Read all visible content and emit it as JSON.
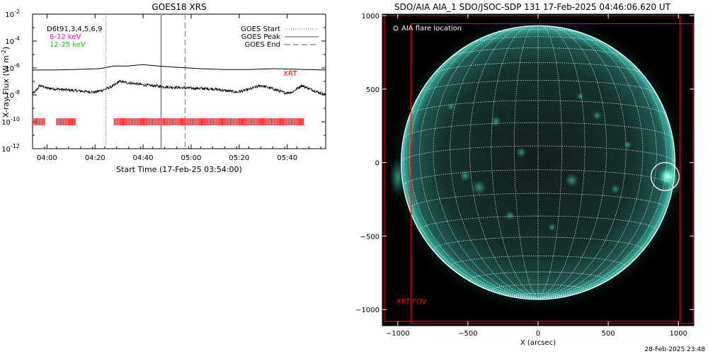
{
  "goes_panel": {
    "chart_data": {
      "type": "line",
      "title": "GOES18 XRS",
      "xlabel": "Start Time (17-Feb-25 03:54:00)",
      "ylabel": "X-ray Flux (W m",
      "ylabel_sup": "-2",
      "ylabel_close": ")",
      "x_unit": "minutes after 03:54:00",
      "x_ticks": [
        {
          "t": 6,
          "label": "04:00"
        },
        {
          "t": 26,
          "label": "04:20"
        },
        {
          "t": 46,
          "label": "04:40"
        },
        {
          "t": 66,
          "label": "05:00"
        },
        {
          "t": 86,
          "label": "05:20"
        },
        {
          "t": 106,
          "label": "05:40"
        }
      ],
      "xlim": [
        0,
        122
      ],
      "y_scale": "log",
      "ylim_exp": [
        -12,
        -2
      ],
      "y_ticks": [
        {
          "exp": -2,
          "label": "10",
          "sup": "-2"
        },
        {
          "exp": -4,
          "label": "10",
          "sup": "-4"
        },
        {
          "exp": -6,
          "label": "10",
          "sup": "-6"
        },
        {
          "exp": -8,
          "label": "10",
          "sup": "-8"
        },
        {
          "exp": -10,
          "label": "10",
          "sup": "-10"
        },
        {
          "exp": -12,
          "label": "10",
          "sup": "-12"
        }
      ],
      "series": [
        {
          "name": "6-12 keV",
          "color": "#000000",
          "noisy": false,
          "points": [
            [
              0,
              -6.15
            ],
            [
              10,
              -6.15
            ],
            [
              20,
              -6.1
            ],
            [
              28,
              -6.05
            ],
            [
              34,
              -5.85
            ],
            [
              40,
              -5.85
            ],
            [
              46,
              -5.75
            ],
            [
              52,
              -5.85
            ],
            [
              60,
              -5.95
            ],
            [
              70,
              -6.05
            ],
            [
              80,
              -6.12
            ],
            [
              90,
              -6.12
            ],
            [
              100,
              -6.05
            ],
            [
              110,
              -6.1
            ],
            [
              122,
              -6.15
            ]
          ]
        },
        {
          "name": "12-25 keV",
          "color": "#000000",
          "noisy": true,
          "points": [
            [
              0,
              -7.9
            ],
            [
              1,
              -7.8
            ],
            [
              3,
              -7.3
            ],
            [
              6,
              -7.5
            ],
            [
              12,
              -7.6
            ],
            [
              20,
              -7.72
            ],
            [
              26,
              -7.8
            ],
            [
              30,
              -7.6
            ],
            [
              34,
              -7.3
            ],
            [
              36,
              -7.0
            ],
            [
              40,
              -7.1
            ],
            [
              46,
              -7.25
            ],
            [
              55,
              -7.4
            ],
            [
              65,
              -7.5
            ],
            [
              75,
              -7.55
            ],
            [
              85,
              -7.8
            ],
            [
              90,
              -7.6
            ],
            [
              95,
              -7.3
            ],
            [
              100,
              -7.55
            ],
            [
              105,
              -7.85
            ],
            [
              108,
              -7.8
            ],
            [
              112,
              -7.3
            ],
            [
              116,
              -7.6
            ],
            [
              122,
              -8.0
            ]
          ]
        }
      ],
      "events": {
        "start": {
          "t": 30.5,
          "label": "GOES Start",
          "style": "dotted"
        },
        "peak": {
          "t": 53.5,
          "label": "GOES Peak",
          "style": "solid"
        },
        "end": {
          "t": 63.5,
          "label": "GOES End",
          "style": "dashed"
        }
      },
      "xrt_coverage": {
        "label": "XRT",
        "color": "#ff0000",
        "level_exp": -10,
        "intervals": [
          [
            0,
            5
          ],
          [
            10,
            18
          ],
          [
            34,
            113
          ]
        ]
      },
      "legend_left": {
        "line1": "D6t91,3,4,5,6,9",
        "line2": "6-12 keV",
        "line2_color": "#ff00ff",
        "line3": "12-25 keV",
        "line3_color": "#00cc00"
      }
    }
  },
  "aia_panel": {
    "title": "SDO/AIA AIA_1 SDO/JSOC-SDP 131 17-Feb-2025 04:46:06.620 UT",
    "chart_data": {
      "type": "scatter",
      "xlabel": "X (arcsec)",
      "ylabel": "",
      "xlim": [
        -1110,
        1110
      ],
      "ylim": [
        -1110,
        1010
      ],
      "x_ticks": [
        -1000,
        -500,
        0,
        500,
        1000
      ],
      "x_tick_labels": [
        "−1000",
        "−500",
        "0",
        "500",
        "1000"
      ],
      "y_ticks": [
        1000,
        500,
        0,
        -500,
        -1000
      ],
      "y_tick_labels": [
        "1000",
        "500",
        "0",
        "−500",
        "−1000"
      ],
      "solar_radius": 975,
      "flare": {
        "x": 905,
        "y": -95,
        "r": 100,
        "label": "AIA flare location"
      },
      "xrt_fov": {
        "label": "XRT FOV",
        "color": "#ff0000",
        "outer": {
          "x0": -1095,
          "x1": 1010,
          "y0": -1080,
          "y1": 1000
        },
        "inner": {
          "x0": -905,
          "x1": 1105,
          "y0": -1095,
          "y1": 945
        }
      },
      "grid_colors": {
        "disk": "#1c2e2c",
        "limb_glow": "#2fb6a3",
        "lines": "#ffffff"
      }
    }
  },
  "footer": {
    "timestamp": "28-Feb-2025 23:48"
  }
}
